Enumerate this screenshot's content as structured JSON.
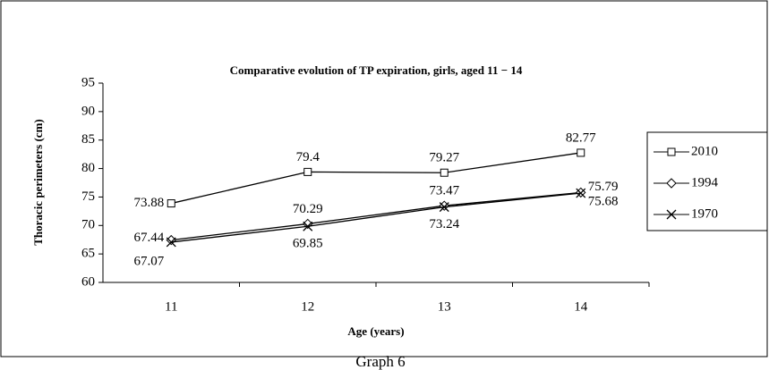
{
  "chart_data": {
    "type": "line",
    "title": "Comparative evolution of TP expiration, girls, aged 11 − 14",
    "x_label": "Age (years)",
    "y_label": "Thoracic perimeters (cm)",
    "caption": "Graph 6",
    "categories": [
      "11",
      "12",
      "13",
      "14"
    ],
    "series": [
      {
        "name": "2010",
        "color": "#000000",
        "marker": "square",
        "values": [
          73.88,
          79.4,
          79.27,
          82.77
        ]
      },
      {
        "name": "1994",
        "color": "#000000",
        "marker": "diamond",
        "values": [
          67.44,
          70.29,
          73.47,
          75.79
        ]
      },
      {
        "name": "1970",
        "color": "#000000",
        "marker": "x",
        "values": [
          67.07,
          69.85,
          73.24,
          75.68
        ]
      }
    ],
    "ylim": [
      60,
      95
    ],
    "yticks": [
      60,
      65,
      70,
      75,
      80,
      85,
      90,
      95
    ],
    "legend": "right"
  }
}
